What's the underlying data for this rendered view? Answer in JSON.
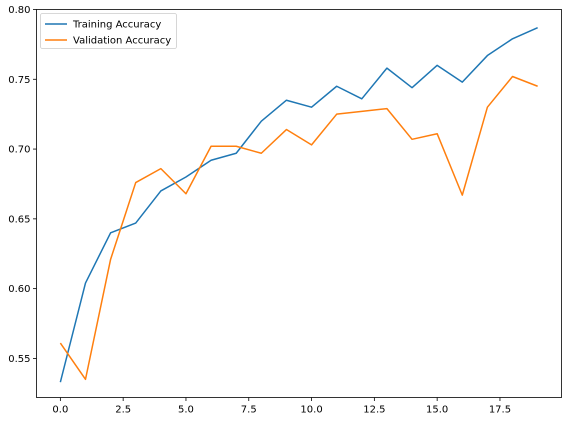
{
  "chart_data": {
    "type": "line",
    "title": "",
    "xlabel": "",
    "ylabel": "",
    "x": [
      0,
      1,
      2,
      3,
      4,
      5,
      6,
      7,
      8,
      9,
      10,
      11,
      12,
      13,
      14,
      15,
      16,
      17,
      18,
      19
    ],
    "xlim": [
      -0.95,
      19.95
    ],
    "ylim": [
      0.522,
      0.8
    ],
    "xticks": [
      0,
      2.5,
      5,
      7.5,
      10,
      12.5,
      15,
      17.5
    ],
    "xtick_labels": [
      "0.0",
      "2.5",
      "5.0",
      "7.5",
      "10.0",
      "12.5",
      "15.0",
      "17.5"
    ],
    "yticks": [
      0.55,
      0.6,
      0.65,
      0.7,
      0.75,
      0.8
    ],
    "ytick_labels": [
      "0.55",
      "0.60",
      "0.65",
      "0.70",
      "0.75",
      "0.80"
    ],
    "grid": false,
    "legend_position": "top-left",
    "series": [
      {
        "name": "Training Accuracy",
        "color": "#1f77b4",
        "values": [
          0.533,
          0.604,
          0.64,
          0.647,
          0.67,
          0.68,
          0.692,
          0.697,
          0.72,
          0.735,
          0.73,
          0.745,
          0.736,
          0.758,
          0.744,
          0.76,
          0.748,
          0.767,
          0.779,
          0.787
        ]
      },
      {
        "name": "Validation Accuracy",
        "color": "#ff7f0e",
        "values": [
          0.561,
          0.535,
          0.621,
          0.676,
          0.686,
          0.668,
          0.702,
          0.702,
          0.697,
          0.714,
          0.703,
          0.725,
          0.727,
          0.729,
          0.707,
          0.711,
          0.667,
          0.73,
          0.752,
          0.745
        ]
      }
    ]
  }
}
